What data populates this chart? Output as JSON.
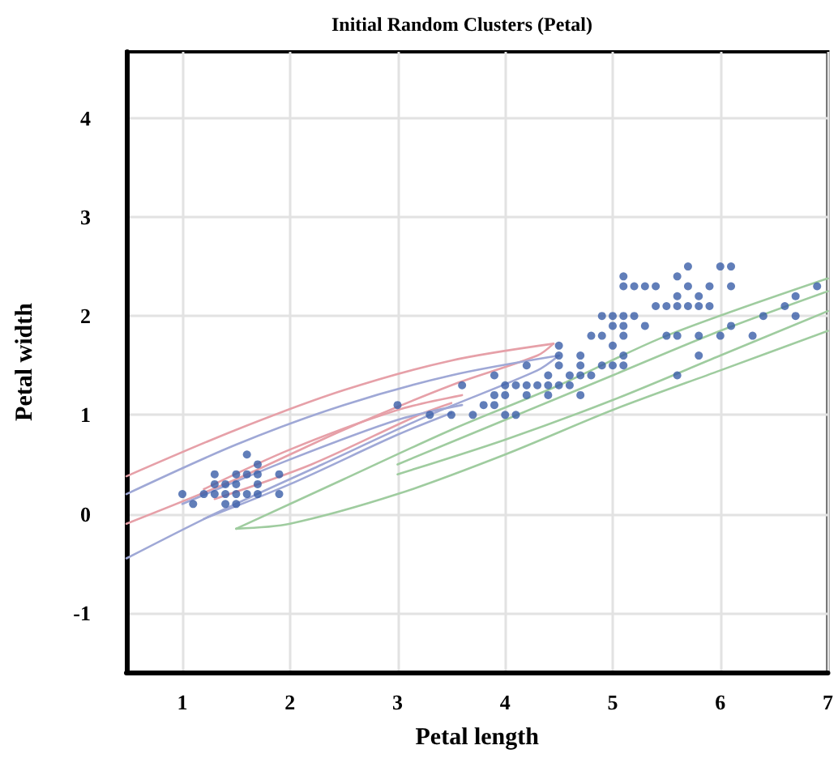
{
  "chart_data": {
    "type": "scatter",
    "title": "Initial Random Clusters (Petal)",
    "xlabel": "Petal length",
    "ylabel": "Petal width",
    "xlim": [
      0.48,
      7.0
    ],
    "xticks": [
      1,
      2,
      3,
      4,
      5,
      6,
      7
    ],
    "ylim": [
      -1.6,
      4.67
    ],
    "yticks": [
      -1,
      0,
      1,
      2,
      3,
      4
    ],
    "grid": true,
    "series": [
      {
        "type": "line",
        "color": "#e6a0a8",
        "x": [
          0.48,
          1.5,
          2.5,
          3.5,
          4.45
        ],
        "values": [
          0.38,
          0.85,
          1.25,
          1.55,
          1.72
        ]
      },
      {
        "type": "line",
        "color": "#e6a0a8",
        "x": [
          0.48,
          1.5,
          2.5,
          3.5,
          4.3,
          4.45
        ],
        "values": [
          -0.1,
          0.35,
          0.85,
          1.3,
          1.6,
          1.72
        ]
      },
      {
        "type": "line",
        "color": "#e6a0a8",
        "x": [
          1.2,
          2.0,
          3.0,
          3.6
        ],
        "values": [
          0.25,
          0.65,
          1.05,
          1.2
        ]
      },
      {
        "type": "line",
        "color": "#e6a0a8",
        "x": [
          1.3,
          2.2,
          3.2,
          3.5
        ],
        "values": [
          0.15,
          0.5,
          1.0,
          1.12
        ]
      },
      {
        "type": "line",
        "color": "#9fa8d6",
        "x": [
          0.48,
          1.5,
          2.5,
          3.5,
          4.5
        ],
        "values": [
          0.2,
          0.7,
          1.1,
          1.4,
          1.6
        ]
      },
      {
        "type": "line",
        "color": "#9fa8d6",
        "x": [
          0.48,
          1.3,
          2.3,
          3.3,
          4.3,
          4.5
        ],
        "values": [
          -0.45,
          0.0,
          0.5,
          1.0,
          1.45,
          1.6
        ]
      },
      {
        "type": "line",
        "color": "#9fa8d6",
        "x": [
          1.0,
          2.0,
          3.0,
          3.6
        ],
        "values": [
          0.1,
          0.55,
          0.95,
          1.1
        ]
      },
      {
        "type": "line",
        "color": "#9fa8d6",
        "x": [
          1.2,
          2.0,
          3.0,
          3.5
        ],
        "values": [
          -0.05,
          0.3,
          0.8,
          1.02
        ]
      },
      {
        "type": "line",
        "color": "#9fcc9f",
        "x": [
          1.5,
          2.5,
          3.5,
          4.5,
          5.5,
          7.0
        ],
        "values": [
          -0.15,
          0.35,
          0.85,
          1.3,
          1.8,
          2.38
        ]
      },
      {
        "type": "line",
        "color": "#9fcc9f",
        "x": [
          1.5,
          2.0,
          3.0,
          4.0,
          5.0,
          6.0,
          7.0
        ],
        "values": [
          -0.15,
          -0.1,
          0.2,
          0.6,
          1.05,
          1.45,
          1.85
        ]
      },
      {
        "type": "line",
        "color": "#9fcc9f",
        "x": [
          3.0,
          4.0,
          5.0,
          6.0,
          7.0
        ],
        "values": [
          0.5,
          0.95,
          1.4,
          1.85,
          2.25
        ]
      },
      {
        "type": "line",
        "color": "#9fcc9f",
        "x": [
          3.0,
          4.0,
          5.0,
          6.0,
          7.0
        ],
        "values": [
          0.4,
          0.75,
          1.15,
          1.6,
          2.05
        ]
      },
      {
        "color": "#3a5ea8",
        "marker": "circle",
        "x": [
          1.0,
          1.1,
          1.2,
          1.3,
          1.3,
          1.3,
          1.4,
          1.4,
          1.4,
          1.5,
          1.5,
          1.5,
          1.5,
          1.6,
          1.6,
          1.6,
          1.7,
          1.7,
          1.7,
          1.7,
          1.9,
          1.9,
          3.0,
          3.3,
          3.5,
          3.6,
          3.7,
          3.8,
          3.9,
          3.9,
          3.9,
          4.0,
          4.0,
          4.0,
          4.1,
          4.1,
          4.2,
          4.2,
          4.2,
          4.3,
          4.4,
          4.4,
          4.4,
          4.5,
          4.5,
          4.5,
          4.5,
          4.6,
          4.6,
          4.7,
          4.7,
          4.7,
          4.7,
          4.8,
          4.8,
          4.9,
          4.9,
          4.9,
          5.0,
          5.0,
          5.0,
          5.0,
          5.1,
          5.1,
          5.1,
          5.1,
          5.1,
          5.1,
          5.1,
          5.2,
          5.2,
          5.3,
          5.3,
          5.4,
          5.4,
          5.5,
          5.5,
          5.6,
          5.6,
          5.6,
          5.6,
          5.6,
          5.7,
          5.7,
          5.7,
          5.8,
          5.8,
          5.8,
          5.8,
          5.9,
          5.9,
          6.0,
          6.0,
          6.1,
          6.1,
          6.1,
          6.3,
          6.4,
          6.6,
          6.7,
          6.7,
          6.9
        ],
        "values": [
          0.2,
          0.1,
          0.2,
          0.2,
          0.3,
          0.4,
          0.1,
          0.2,
          0.3,
          0.1,
          0.2,
          0.3,
          0.4,
          0.2,
          0.4,
          0.6,
          0.2,
          0.3,
          0.4,
          0.5,
          0.2,
          0.4,
          1.1,
          1.0,
          1.0,
          1.3,
          1.0,
          1.1,
          1.1,
          1.2,
          1.4,
          1.0,
          1.2,
          1.3,
          1.0,
          1.3,
          1.2,
          1.3,
          1.5,
          1.3,
          1.2,
          1.3,
          1.4,
          1.3,
          1.5,
          1.6,
          1.7,
          1.3,
          1.4,
          1.2,
          1.4,
          1.5,
          1.6,
          1.4,
          1.8,
          1.5,
          1.8,
          2.0,
          1.5,
          1.7,
          1.9,
          2.0,
          1.5,
          1.6,
          1.8,
          1.9,
          2.0,
          2.3,
          2.4,
          2.0,
          2.3,
          1.9,
          2.3,
          2.1,
          2.3,
          1.8,
          2.1,
          1.4,
          1.8,
          2.1,
          2.2,
          2.4,
          2.1,
          2.3,
          2.5,
          1.6,
          1.8,
          2.2,
          2.1,
          2.1,
          2.3,
          1.8,
          2.5,
          1.9,
          2.3,
          2.5,
          1.8,
          2.0,
          2.1,
          2.0,
          2.2,
          2.3
        ]
      }
    ]
  }
}
